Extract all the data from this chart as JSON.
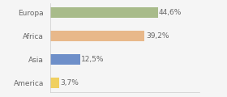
{
  "categories": [
    "Europa",
    "Africa",
    "Asia",
    "America"
  ],
  "values": [
    44.6,
    39.2,
    12.5,
    3.7
  ],
  "labels": [
    "44,6%",
    "39,2%",
    "12,5%",
    "3,7%"
  ],
  "bar_colors": [
    "#a8bb8a",
    "#e8b88a",
    "#6e8fc9",
    "#f0d060"
  ],
  "background_color": "#f5f5f5",
  "xlim": [
    0,
    62
  ],
  "bar_height": 0.45,
  "label_fontsize": 6.5,
  "cat_fontsize": 6.5,
  "label_color": "#666666",
  "cat_color": "#666666"
}
